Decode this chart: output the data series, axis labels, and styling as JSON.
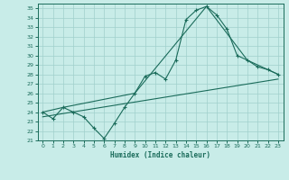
{
  "xlabel": "Humidex (Indice chaleur)",
  "xlim": [
    -0.5,
    23.5
  ],
  "ylim": [
    21,
    35.5
  ],
  "xticks": [
    0,
    1,
    2,
    3,
    4,
    5,
    6,
    7,
    8,
    9,
    10,
    11,
    12,
    13,
    14,
    15,
    16,
    17,
    18,
    19,
    20,
    21,
    22,
    23
  ],
  "yticks": [
    21,
    22,
    23,
    24,
    25,
    26,
    27,
    28,
    29,
    30,
    31,
    32,
    33,
    34,
    35
  ],
  "bg_color": "#c8ece8",
  "line_color": "#1a6b5a",
  "grid_color": "#a0d0cc",
  "line1_x": [
    0,
    1,
    2,
    3,
    4,
    5,
    6,
    7,
    8,
    9,
    10,
    11,
    12,
    13,
    14,
    15,
    16,
    17,
    18,
    19,
    20,
    21,
    22,
    23
  ],
  "line1_y": [
    24.0,
    23.3,
    24.5,
    24.0,
    23.5,
    22.3,
    21.2,
    22.8,
    24.5,
    26.0,
    27.8,
    28.2,
    27.5,
    29.5,
    33.8,
    34.8,
    35.2,
    34.3,
    32.8,
    30.0,
    29.5,
    28.8,
    28.5,
    28.0
  ],
  "line2_x": [
    0,
    2,
    9,
    16,
    20,
    23
  ],
  "line2_y": [
    24.0,
    24.5,
    26.0,
    35.2,
    29.5,
    28.0
  ],
  "line3_x": [
    0,
    23
  ],
  "line3_y": [
    23.5,
    27.5
  ]
}
